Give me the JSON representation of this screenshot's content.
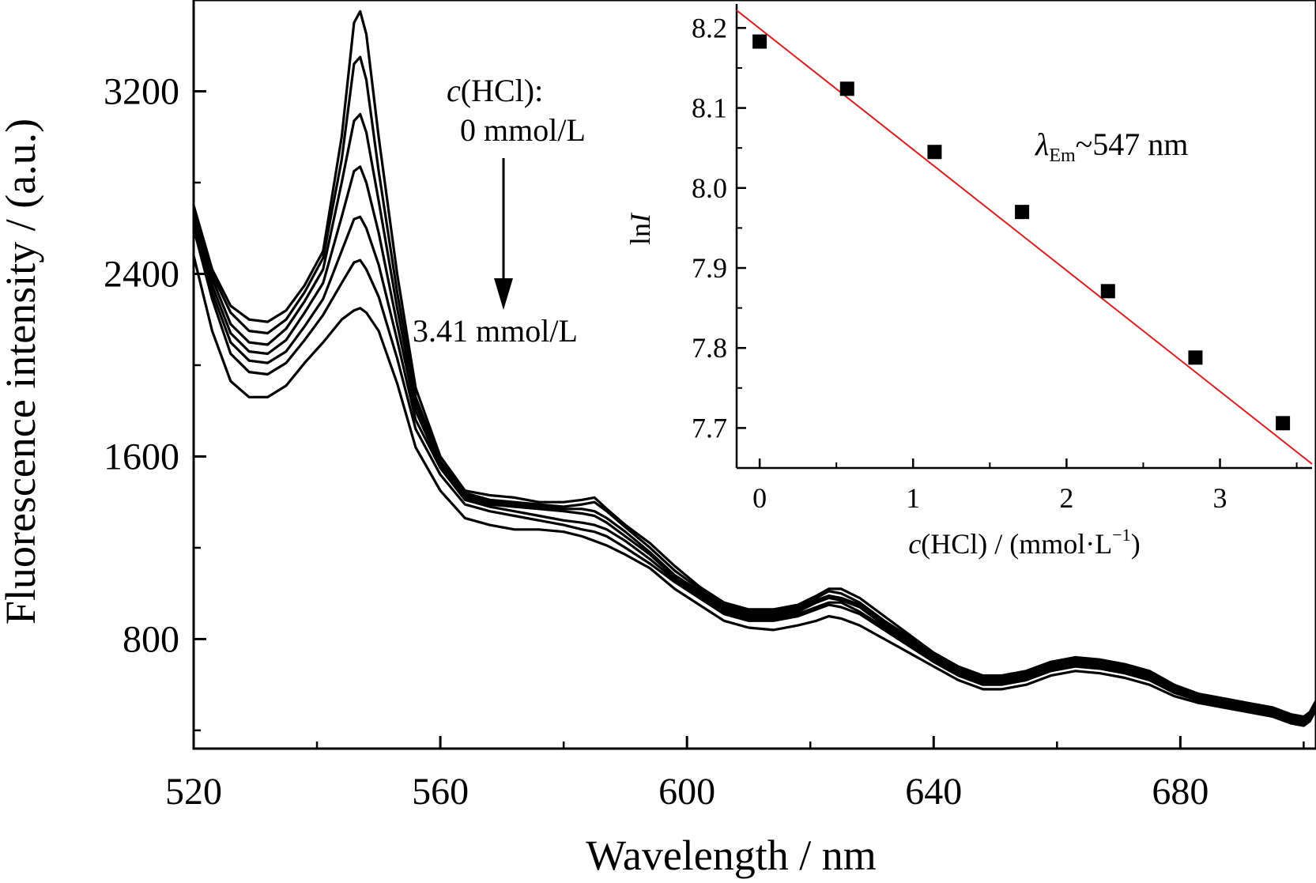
{
  "chart_data": [
    {
      "type": "line",
      "xlabel": "Wavelength / nm",
      "ylabel": "Fluorescence intensity / (a.u.)",
      "xlim": [
        520,
        702
      ],
      "ylim": [
        320,
        3600
      ],
      "x_ticks": [
        520,
        560,
        600,
        640,
        680
      ],
      "x_tick_labels": [
        "520",
        "560",
        "600",
        "640",
        "680"
      ],
      "y_ticks": [
        800,
        1600,
        2400,
        3200
      ],
      "y_tick_labels": [
        "800",
        "1600",
        "2400",
        "3200"
      ],
      "grid": false,
      "x": [
        520,
        523,
        526,
        529,
        532,
        535,
        538,
        541,
        544,
        546,
        547,
        548,
        550,
        553,
        556,
        560,
        564,
        568,
        572,
        576,
        580,
        583,
        585,
        587,
        590,
        594,
        598,
        602,
        606,
        610,
        614,
        618,
        621,
        623,
        625,
        628,
        632,
        636,
        640,
        644,
        648,
        651,
        655,
        659,
        663,
        667,
        671,
        675,
        679,
        683,
        687,
        691,
        695,
        698,
        700,
        701,
        702
      ],
      "series": [
        {
          "values": [
            2700,
            2420,
            2260,
            2200,
            2190,
            2240,
            2350,
            2500,
            3000,
            3500,
            3550,
            3450,
            3000,
            2400,
            1900,
            1600,
            1450,
            1430,
            1420,
            1400,
            1400,
            1410,
            1420,
            1370,
            1300,
            1220,
            1120,
            1030,
            960,
            930,
            930,
            950,
            990,
            1020,
            1020,
            980,
            900,
            820,
            740,
            680,
            640,
            640,
            660,
            700,
            720,
            710,
            690,
            660,
            600,
            560,
            540,
            520,
            500,
            470,
            460,
            480,
            530
          ]
        },
        {
          "values": [
            2680,
            2400,
            2230,
            2150,
            2140,
            2200,
            2320,
            2470,
            2900,
            3320,
            3350,
            3250,
            2850,
            2320,
            1860,
            1580,
            1440,
            1410,
            1400,
            1390,
            1380,
            1390,
            1400,
            1360,
            1290,
            1200,
            1100,
            1020,
            950,
            920,
            920,
            940,
            980,
            1010,
            1000,
            960,
            880,
            810,
            730,
            670,
            630,
            630,
            650,
            690,
            710,
            700,
            680,
            650,
            590,
            550,
            530,
            510,
            490,
            460,
            450,
            470,
            520
          ]
        },
        {
          "values": [
            2660,
            2380,
            2180,
            2100,
            2090,
            2160,
            2280,
            2420,
            2800,
            3070,
            3100,
            3020,
            2720,
            2250,
            1830,
            1570,
            1430,
            1400,
            1390,
            1380,
            1370,
            1370,
            1360,
            1330,
            1270,
            1180,
            1080,
            1010,
            940,
            910,
            910,
            930,
            970,
            990,
            980,
            950,
            870,
            800,
            720,
            660,
            620,
            620,
            640,
            680,
            700,
            690,
            670,
            640,
            580,
            545,
            525,
            505,
            485,
            455,
            445,
            465,
            515
          ]
        },
        {
          "values": [
            2640,
            2350,
            2140,
            2060,
            2050,
            2110,
            2230,
            2360,
            2650,
            2850,
            2870,
            2800,
            2580,
            2180,
            1800,
            1560,
            1420,
            1390,
            1380,
            1370,
            1360,
            1350,
            1340,
            1310,
            1250,
            1170,
            1070,
            1000,
            930,
            900,
            900,
            920,
            960,
            980,
            970,
            940,
            860,
            790,
            715,
            655,
            615,
            615,
            635,
            675,
            695,
            685,
            665,
            635,
            575,
            540,
            520,
            500,
            480,
            450,
            440,
            460,
            510
          ]
        },
        {
          "values": [
            2620,
            2320,
            2100,
            2020,
            2010,
            2060,
            2170,
            2290,
            2500,
            2640,
            2650,
            2600,
            2440,
            2110,
            1760,
            1550,
            1410,
            1380,
            1360,
            1340,
            1320,
            1310,
            1300,
            1280,
            1230,
            1150,
            1060,
            990,
            920,
            890,
            890,
            910,
            940,
            960,
            960,
            920,
            850,
            780,
            710,
            650,
            610,
            610,
            630,
            670,
            690,
            680,
            660,
            630,
            570,
            535,
            515,
            495,
            475,
            445,
            435,
            455,
            505
          ]
        },
        {
          "values": [
            2600,
            2290,
            2050,
            1970,
            1960,
            2010,
            2110,
            2220,
            2360,
            2450,
            2460,
            2420,
            2300,
            2030,
            1720,
            1520,
            1390,
            1360,
            1340,
            1320,
            1300,
            1280,
            1270,
            1250,
            1200,
            1130,
            1050,
            980,
            910,
            880,
            880,
            900,
            930,
            950,
            940,
            910,
            840,
            770,
            700,
            640,
            600,
            600,
            620,
            660,
            680,
            670,
            650,
            620,
            565,
            530,
            510,
            490,
            470,
            440,
            430,
            450,
            500
          ]
        },
        {
          "values": [
            2480,
            2150,
            1930,
            1860,
            1860,
            1910,
            2010,
            2100,
            2200,
            2240,
            2250,
            2230,
            2150,
            1920,
            1640,
            1450,
            1330,
            1300,
            1280,
            1280,
            1270,
            1250,
            1230,
            1210,
            1170,
            1110,
            1020,
            950,
            880,
            850,
            840,
            860,
            880,
            900,
            890,
            860,
            800,
            740,
            680,
            620,
            580,
            580,
            600,
            640,
            660,
            650,
            630,
            600,
            550,
            520,
            500,
            480,
            460,
            430,
            420,
            440,
            490
          ]
        }
      ],
      "annotations": [
        {
          "prefix": "c",
          "text": "(HCl):"
        },
        {
          "text": "0 mmol/L"
        },
        {
          "text": "3.41 mmol/L"
        }
      ]
    },
    {
      "type": "scatter",
      "xlabel_prefix": "c",
      "xlabel_main": "(HCl) / (mmol·L",
      "xlabel_sup": "−1",
      "xlabel_suffix": ")",
      "ylabel_prefix": "ln",
      "ylabel_italic": "I",
      "xlim": [
        -0.15,
        3.6
      ],
      "ylim": [
        7.65,
        8.23
      ],
      "x_ticks": [
        0,
        1,
        2,
        3
      ],
      "x_tick_labels": [
        "0",
        "1",
        "2",
        "3"
      ],
      "y_ticks": [
        7.7,
        7.8,
        7.9,
        8.0,
        8.1,
        8.2
      ],
      "y_tick_labels": [
        "7.7",
        "7.8",
        "7.9",
        "8.0",
        "8.1",
        "8.2"
      ],
      "points": [
        {
          "x": 0.0,
          "y": 8.183
        },
        {
          "x": 0.57,
          "y": 8.124
        },
        {
          "x": 1.14,
          "y": 8.045
        },
        {
          "x": 1.71,
          "y": 7.97
        },
        {
          "x": 2.27,
          "y": 7.871
        },
        {
          "x": 2.84,
          "y": 7.788
        },
        {
          "x": 3.41,
          "y": 7.706
        }
      ],
      "marker_color": "#000000",
      "fit_line": {
        "color": "#d62020",
        "x": [
          -0.15,
          3.6
        ],
        "y": [
          8.222,
          7.655
        ]
      },
      "annotation": {
        "symbol": "λ",
        "subscript": "Em",
        "text": "~547 nm"
      }
    }
  ]
}
